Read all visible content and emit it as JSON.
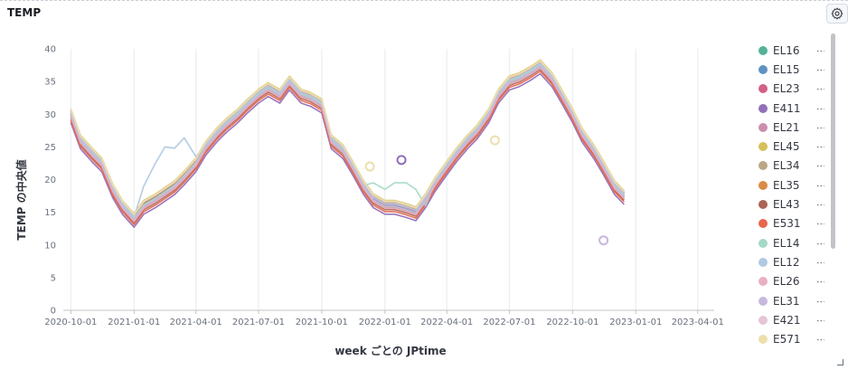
{
  "panel": {
    "title": "TEMP",
    "settings_icon": "gear-icon"
  },
  "chart_data": {
    "type": "line",
    "title": "",
    "xlabel": "week ごとの JPtime",
    "ylabel": "TEMP の中央値",
    "ylim": [
      0,
      40
    ],
    "xlim": [
      "2020-09-20",
      "2023-04-25"
    ],
    "y_ticks": [
      0,
      5,
      10,
      15,
      20,
      25,
      30,
      35,
      40
    ],
    "x_ticks": [
      "2020-10-01",
      "2021-01-01",
      "2021-04-01",
      "2021-07-01",
      "2021-10-01",
      "2022-01-01",
      "2022-04-01",
      "2022-07-01",
      "2022-10-01",
      "2023-01-01",
      "2023-04-01"
    ],
    "grid": {
      "vertical": true,
      "horizontal": false
    },
    "legend_position": "right",
    "series": [
      {
        "name": "EL16",
        "color": "#54b399"
      },
      {
        "name": "EL15",
        "color": "#6092c0"
      },
      {
        "name": "EL23",
        "color": "#d36086"
      },
      {
        "name": "E411",
        "color": "#9170b8"
      },
      {
        "name": "EL21",
        "color": "#ca8eae"
      },
      {
        "name": "EL45",
        "color": "#d6bf57"
      },
      {
        "name": "EL34",
        "color": "#b9a888"
      },
      {
        "name": "EL35",
        "color": "#da8b45"
      },
      {
        "name": "EL43",
        "color": "#aa6556"
      },
      {
        "name": "E531",
        "color": "#e7664c"
      },
      {
        "name": "EL14",
        "color": "#a5d9c7"
      },
      {
        "name": "EL12",
        "color": "#b0c9e0"
      },
      {
        "name": "EL26",
        "color": "#e9afc2"
      },
      {
        "name": "EL31",
        "color": "#c8b8dc"
      },
      {
        "name": "E421",
        "color": "#e4c5d5"
      },
      {
        "name": "E571",
        "color": "#ebdfac"
      }
    ],
    "base_curve": [
      [
        "2020-10-01",
        30
      ],
      [
        "2020-10-15",
        26
      ],
      [
        "2020-11-01",
        24
      ],
      [
        "2020-11-15",
        22.5
      ],
      [
        "2020-12-01",
        18.5
      ],
      [
        "2020-12-15",
        16
      ],
      [
        "2021-01-01",
        14
      ],
      [
        "2021-01-15",
        16
      ],
      [
        "2021-02-01",
        17
      ],
      [
        "2021-02-15",
        18
      ],
      [
        "2021-03-01",
        19
      ],
      [
        "2021-03-15",
        20.5
      ],
      [
        "2021-04-01",
        22.5
      ],
      [
        "2021-04-15",
        25
      ],
      [
        "2021-05-01",
        27
      ],
      [
        "2021-05-15",
        28.5
      ],
      [
        "2021-06-01",
        30
      ],
      [
        "2021-06-15",
        31.5
      ],
      [
        "2021-07-01",
        33
      ],
      [
        "2021-07-15",
        34
      ],
      [
        "2021-08-01",
        33
      ],
      [
        "2021-08-15",
        35
      ],
      [
        "2021-09-01",
        33
      ],
      [
        "2021-09-15",
        32.5
      ],
      [
        "2021-10-01",
        31.5
      ],
      [
        "2021-10-15",
        26
      ],
      [
        "2021-11-01",
        24.5
      ],
      [
        "2021-11-15",
        22
      ],
      [
        "2021-12-01",
        19
      ],
      [
        "2021-12-15",
        17
      ],
      [
        "2022-01-01",
        16
      ],
      [
        "2022-01-15",
        16
      ],
      [
        "2022-02-01",
        15.5
      ],
      [
        "2022-02-15",
        15
      ],
      [
        "2022-03-01",
        17
      ],
      [
        "2022-03-15",
        19.5
      ],
      [
        "2022-04-01",
        22
      ],
      [
        "2022-04-15",
        24
      ],
      [
        "2022-05-01",
        26
      ],
      [
        "2022-05-15",
        27.5
      ],
      [
        "2022-06-01",
        30
      ],
      [
        "2022-06-15",
        33
      ],
      [
        "2022-07-01",
        35
      ],
      [
        "2022-07-15",
        35.5
      ],
      [
        "2022-08-01",
        36.5
      ],
      [
        "2022-08-15",
        37.5
      ],
      [
        "2022-09-01",
        35.5
      ],
      [
        "2022-09-15",
        33
      ],
      [
        "2022-10-01",
        30
      ],
      [
        "2022-10-15",
        27
      ],
      [
        "2022-11-01",
        24.5
      ],
      [
        "2022-11-15",
        22
      ],
      [
        "2022-12-01",
        19
      ],
      [
        "2022-12-15",
        17.5
      ]
    ],
    "series_offsets": [
      0.4,
      0.0,
      -0.3,
      -1.3,
      0.2,
      0.8,
      -0.2,
      0.5,
      -0.6,
      -0.9,
      0.1,
      0.3,
      -0.4,
      -0.1,
      0.6,
      0.7
    ],
    "el12_bump": [
      [
        "2021-01-15",
        19
      ],
      [
        "2021-02-01",
        22.5
      ],
      [
        "2021-02-15",
        25
      ],
      [
        "2021-03-01",
        24.8
      ],
      [
        "2021-03-15",
        26.4
      ],
      [
        "2021-04-01",
        23.5
      ]
    ],
    "el14_segment": [
      [
        "2021-12-15",
        19.5
      ],
      [
        "2022-01-01",
        18.5
      ],
      [
        "2022-01-15",
        19.5
      ],
      [
        "2022-02-01",
        19.5
      ],
      [
        "2022-02-15",
        18.5
      ],
      [
        "2022-03-01",
        16
      ]
    ],
    "outliers": [
      {
        "series": "E411",
        "x": "2022-01-25",
        "y": 23
      },
      {
        "series": "E571",
        "x": "2021-12-10",
        "y": 22
      },
      {
        "series": "E571",
        "x": "2022-06-10",
        "y": 26
      },
      {
        "series": "EL31",
        "x": "2022-11-15",
        "y": 10.7
      }
    ]
  }
}
